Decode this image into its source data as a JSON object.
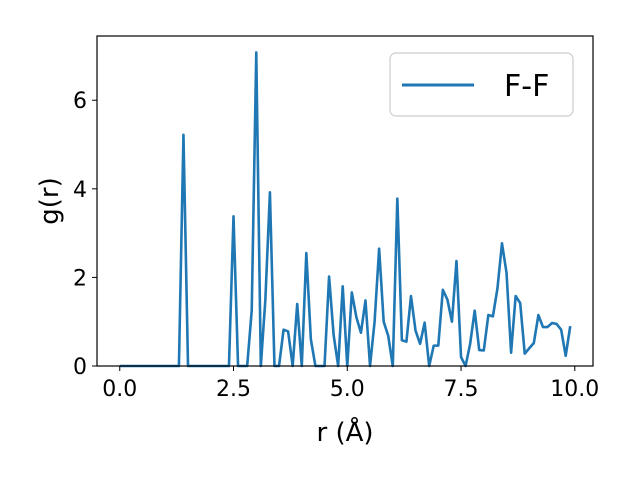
{
  "chart_data": {
    "type": "line",
    "title": "",
    "xlabel": "r (Å)",
    "ylabel": "g(r)",
    "xlim": [
      -0.5,
      10.4
    ],
    "ylim": [
      0,
      7.45
    ],
    "xticks": [
      0.0,
      2.5,
      5.0,
      7.5,
      10.0
    ],
    "xtick_labels": [
      "0.0",
      "2.5",
      "5.0",
      "7.5",
      "10.0"
    ],
    "yticks": [
      0,
      2,
      4,
      6
    ],
    "ytick_labels": [
      "0",
      "2",
      "4",
      "6"
    ],
    "grid": false,
    "legend_position": "top-right",
    "series_color": "#1f77b4",
    "series": [
      {
        "name": "F-F",
        "x": [
          0.0,
          0.1,
          0.2,
          0.3,
          0.4,
          0.5,
          0.6,
          0.7,
          0.8,
          0.9,
          1.0,
          1.1,
          1.2,
          1.3,
          1.4,
          1.5,
          1.6,
          1.7,
          1.8,
          1.9,
          2.0,
          2.1,
          2.2,
          2.3,
          2.4,
          2.5,
          2.6,
          2.7,
          2.8,
          2.9,
          3.0,
          3.1,
          3.2,
          3.3,
          3.4,
          3.5,
          3.6,
          3.7,
          3.8,
          3.9,
          4.0,
          4.1,
          4.2,
          4.3,
          4.4,
          4.5,
          4.6,
          4.7,
          4.8,
          4.9,
          5.0,
          5.1,
          5.2,
          5.3,
          5.4,
          5.5,
          5.6,
          5.7,
          5.8,
          5.9,
          6.0,
          6.1,
          6.2,
          6.3,
          6.4,
          6.5,
          6.6,
          6.7,
          6.8,
          6.9,
          7.0,
          7.1,
          7.2,
          7.3,
          7.4,
          7.5,
          7.6,
          7.7,
          7.8,
          7.9,
          8.0,
          8.1,
          8.2,
          8.3,
          8.4,
          8.5,
          8.6,
          8.7,
          8.8,
          8.9,
          9.0,
          9.1,
          9.2,
          9.3,
          9.4,
          9.5,
          9.6,
          9.7,
          9.8,
          9.9
        ],
        "y": [
          0,
          0,
          0,
          0,
          0,
          0,
          0,
          0,
          0,
          0,
          0,
          0,
          0,
          0,
          5.22,
          0,
          0,
          0,
          0,
          0,
          0,
          0,
          0,
          0,
          0,
          3.38,
          0,
          0,
          0,
          1.25,
          7.08,
          0,
          1.5,
          3.92,
          0,
          0,
          0.82,
          0.78,
          0,
          1.4,
          0,
          2.55,
          0.6,
          0,
          0,
          0,
          2.02,
          0.7,
          0,
          1.8,
          0,
          1.66,
          1.1,
          0.75,
          1.48,
          0,
          1.0,
          2.65,
          1.0,
          0.68,
          0,
          3.78,
          0.58,
          0.55,
          1.58,
          0.8,
          0.5,
          0.98,
          0,
          0.46,
          0.46,
          1.72,
          1.5,
          1.0,
          2.37,
          0.2,
          0,
          0.5,
          1.25,
          0.36,
          0.35,
          1.15,
          1.12,
          1.75,
          2.77,
          2.1,
          0.3,
          1.58,
          1.42,
          0.28,
          0.4,
          0.52,
          1.15,
          0.88,
          0.88,
          0.97,
          0.95,
          0.82,
          0.23,
          0.9
        ]
      }
    ]
  }
}
